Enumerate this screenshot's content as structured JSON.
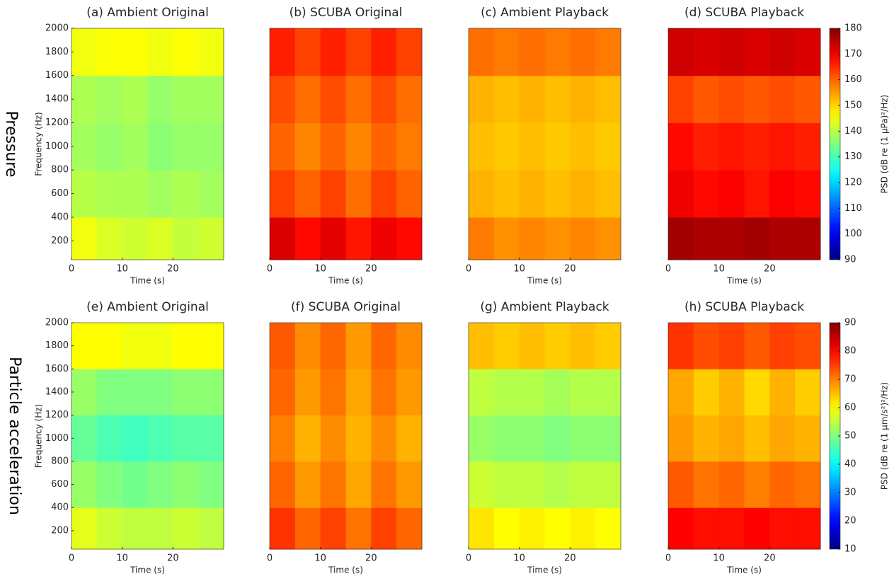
{
  "row_labels": [
    "Pressure",
    "Particle acceleration"
  ],
  "chart_data": [
    {
      "type": "heatmap",
      "title": "(a) Ambient Original",
      "xlabel": "Time (s)",
      "ylabel": "Frequency (Hz)",
      "xlim": [
        0,
        30
      ],
      "xticks": [
        0,
        10,
        20
      ],
      "ylim": [
        40,
        2000
      ],
      "yticks": [
        200,
        400,
        600,
        800,
        1000,
        1200,
        1400,
        1600,
        1800,
        2000
      ],
      "colormap": "jet",
      "zlim": [
        90,
        180
      ],
      "x_bins": [
        0,
        5,
        10,
        15,
        20,
        25,
        30
      ],
      "y_bins": [
        40,
        400,
        800,
        1200,
        1600,
        2000
      ],
      "z": [
        [
          145,
          143,
          142,
          143,
          141,
          142
        ],
        [
          140,
          139,
          139,
          138,
          139,
          138
        ],
        [
          138,
          137,
          138,
          136,
          137,
          137
        ],
        [
          139,
          138,
          139,
          137,
          138,
          138
        ],
        [
          145,
          146,
          146,
          145,
          146,
          145
        ]
      ]
    },
    {
      "type": "heatmap",
      "title": "(b) SCUBA Original",
      "xlabel": "Time (s)",
      "xlim": [
        0,
        30
      ],
      "xticks": [
        0,
        10,
        20
      ],
      "ylim": [
        40,
        2000
      ],
      "colormap": "jet",
      "zlim": [
        90,
        180
      ],
      "x_bins": [
        0,
        5,
        10,
        15,
        20,
        25,
        30
      ],
      "y_bins": [
        40,
        400,
        800,
        1200,
        1600,
        2000
      ],
      "z": [
        [
          172,
          168,
          171,
          167,
          170,
          168
        ],
        [
          163,
          160,
          163,
          159,
          163,
          160
        ],
        [
          160,
          157,
          160,
          157,
          160,
          158
        ],
        [
          162,
          159,
          162,
          159,
          162,
          159
        ],
        [
          166,
          163,
          166,
          163,
          166,
          163
        ]
      ]
    },
    {
      "type": "heatmap",
      "title": "(c) Ambient Playback",
      "xlabel": "Time (s)",
      "xlim": [
        0,
        30
      ],
      "xticks": [
        0,
        10,
        20
      ],
      "ylim": [
        40,
        2000
      ],
      "colormap": "jet",
      "zlim": [
        90,
        180
      ],
      "x_bins": [
        0,
        5,
        10,
        15,
        20,
        25,
        30
      ],
      "y_bins": [
        40,
        400,
        800,
        1200,
        1600,
        2000
      ],
      "z": [
        [
          158,
          156,
          157,
          156,
          157,
          156
        ],
        [
          153,
          152,
          153,
          152,
          153,
          152
        ],
        [
          152,
          151,
          152,
          151,
          152,
          151
        ],
        [
          153,
          152,
          153,
          152,
          153,
          152
        ],
        [
          159,
          158,
          159,
          158,
          159,
          158
        ]
      ]
    },
    {
      "type": "heatmap",
      "title": "(d) SCUBA Playback",
      "xlabel": "Time (s)",
      "xlim": [
        0,
        30
      ],
      "xticks": [
        0,
        10,
        20
      ],
      "ylim": [
        40,
        2000
      ],
      "colormap": "jet",
      "zlim": [
        90,
        180
      ],
      "x_bins": [
        0,
        5,
        10,
        15,
        20,
        25,
        30
      ],
      "y_bins": [
        40,
        400,
        800,
        1200,
        1600,
        2000
      ],
      "z": [
        [
          177,
          176,
          176,
          177,
          176,
          176
        ],
        [
          170,
          168,
          169,
          167,
          169,
          168
        ],
        [
          168,
          166,
          167,
          166,
          167,
          166
        ],
        [
          163,
          161,
          162,
          161,
          162,
          161
        ],
        [
          173,
          172,
          173,
          172,
          173,
          172
        ]
      ],
      "colorbar": {
        "label": "PSD (dB re (1 μPa)²/Hz)",
        "ticks": [
          90,
          100,
          110,
          120,
          130,
          140,
          150,
          160,
          170,
          180
        ]
      }
    },
    {
      "type": "heatmap",
      "title": "(e) Ambient Original",
      "xlabel": "Time (s)",
      "ylabel": "Frequency (Hz)",
      "xlim": [
        0,
        30
      ],
      "xticks": [
        0,
        10,
        20
      ],
      "ylim": [
        40,
        2000
      ],
      "yticks": [
        200,
        400,
        600,
        800,
        1000,
        1200,
        1400,
        1600,
        1800,
        2000
      ],
      "colormap": "jet",
      "zlim": [
        10,
        90
      ],
      "x_bins": [
        0,
        5,
        10,
        15,
        20,
        25,
        30
      ],
      "y_bins": [
        40,
        400,
        800,
        1200,
        1600,
        2000
      ],
      "z": [
        [
          58,
          56,
          55,
          55,
          56,
          55
        ],
        [
          52,
          50,
          49,
          50,
          51,
          50
        ],
        [
          48,
          46,
          45,
          46,
          47,
          47
        ],
        [
          52,
          50,
          50,
          50,
          51,
          51
        ],
        [
          60,
          60,
          59,
          59,
          60,
          60
        ]
      ]
    },
    {
      "type": "heatmap",
      "title": "(f) SCUBA Original",
      "xlabel": "Time (s)",
      "xlim": [
        0,
        30
      ],
      "xticks": [
        0,
        10,
        20
      ],
      "ylim": [
        40,
        2000
      ],
      "colormap": "jet",
      "zlim": [
        10,
        90
      ],
      "x_bins": [
        0,
        5,
        10,
        15,
        20,
        25,
        30
      ],
      "y_bins": [
        40,
        400,
        800,
        1200,
        1600,
        2000
      ],
      "z": [
        [
          76,
          72,
          75,
          71,
          75,
          72
        ],
        [
          72,
          68,
          71,
          67,
          71,
          68
        ],
        [
          70,
          66,
          69,
          66,
          69,
          66
        ],
        [
          72,
          68,
          71,
          67,
          71,
          68
        ],
        [
          73,
          69,
          72,
          68,
          72,
          69
        ]
      ]
    },
    {
      "type": "heatmap",
      "title": "(g) Ambient Playback",
      "xlabel": "Time (s)",
      "xlim": [
        0,
        30
      ],
      "xticks": [
        0,
        10,
        20
      ],
      "ylim": [
        40,
        2000
      ],
      "colormap": "jet",
      "zlim": [
        10,
        90
      ],
      "x_bins": [
        0,
        5,
        10,
        15,
        20,
        25,
        30
      ],
      "y_bins": [
        40,
        400,
        800,
        1200,
        1600,
        2000
      ],
      "z": [
        [
          62,
          60,
          61,
          60,
          61,
          60
        ],
        [
          56,
          55,
          55,
          54,
          55,
          55
        ],
        [
          52,
          51,
          51,
          50,
          51,
          51
        ],
        [
          55,
          54,
          54,
          53,
          54,
          54
        ],
        [
          65,
          64,
          65,
          64,
          65,
          64
        ]
      ]
    },
    {
      "type": "heatmap",
      "title": "(h) SCUBA Playback",
      "xlabel": "Time (s)",
      "xlim": [
        0,
        30
      ],
      "xticks": [
        0,
        10,
        20
      ],
      "ylim": [
        40,
        2000
      ],
      "colormap": "jet",
      "zlim": [
        10,
        90
      ],
      "x_bins": [
        0,
        5,
        10,
        15,
        20,
        25,
        30
      ],
      "y_bins": [
        40,
        400,
        800,
        1200,
        1600,
        2000
      ],
      "z": [
        [
          80,
          79,
          79,
          80,
          79,
          79
        ],
        [
          73,
          71,
          72,
          70,
          72,
          71
        ],
        [
          68,
          66,
          67,
          65,
          67,
          66
        ],
        [
          67,
          64,
          66,
          63,
          66,
          64
        ],
        [
          76,
          74,
          75,
          73,
          75,
          74
        ]
      ],
      "colorbar": {
        "label": "PSD (dB re (1 μm/s²)²/Hz)",
        "ticks": [
          10,
          20,
          30,
          40,
          50,
          60,
          70,
          80,
          90
        ]
      }
    }
  ]
}
